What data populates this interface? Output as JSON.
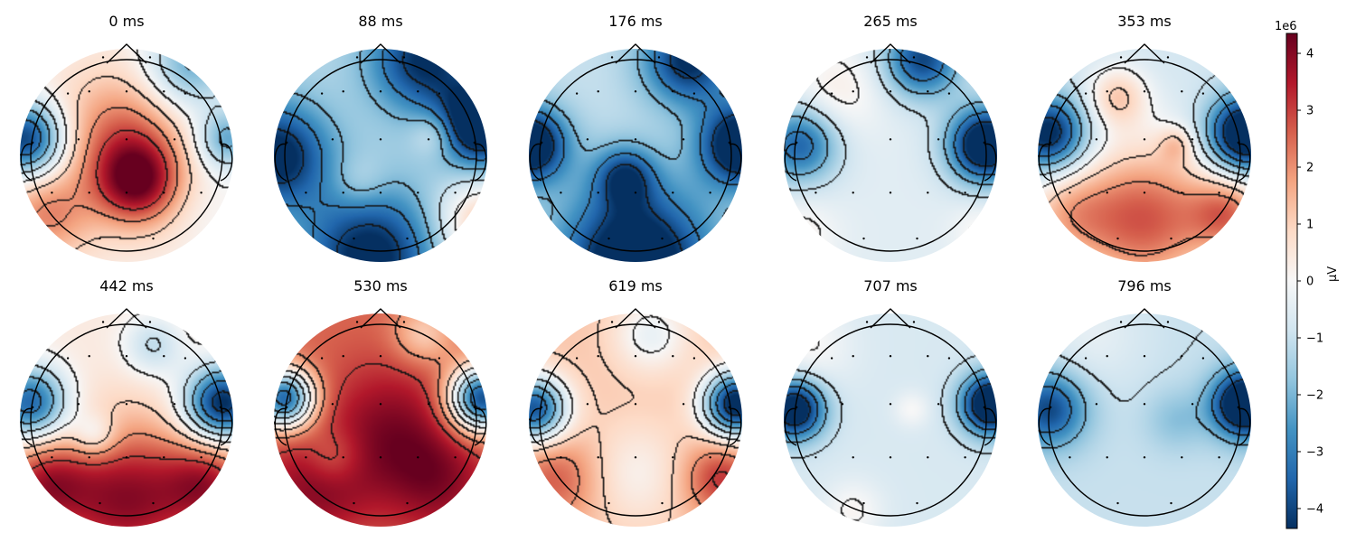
{
  "chart_data": {
    "type": "heatmap",
    "subtype": "eeg-topomap",
    "cmap": "RdBu_r",
    "layout": {
      "rows": 2,
      "cols": 5
    },
    "electrodes": [
      [
        -0.22,
        -0.92
      ],
      [
        0.22,
        -0.92
      ],
      [
        -0.55,
        -0.58
      ],
      [
        -0.35,
        -0.6
      ],
      [
        0.0,
        -0.6
      ],
      [
        0.35,
        -0.6
      ],
      [
        0.55,
        -0.58
      ],
      [
        -0.88,
        -0.12
      ],
      [
        -0.45,
        -0.15
      ],
      [
        0.0,
        -0.15
      ],
      [
        0.45,
        -0.15
      ],
      [
        0.88,
        -0.12
      ],
      [
        -0.7,
        0.35
      ],
      [
        -0.35,
        0.35
      ],
      [
        0.0,
        0.35
      ],
      [
        0.35,
        0.35
      ],
      [
        0.7,
        0.35
      ],
      [
        -0.25,
        0.78
      ],
      [
        0.25,
        0.78
      ]
    ],
    "maps": [
      {
        "label": "0 ms",
        "base": 0.3,
        "blobs": [
          [
            -0.95,
            -0.15,
            0.25,
            -4.5
          ],
          [
            0.95,
            -0.15,
            0.2,
            -2.5
          ],
          [
            0.1,
            0.25,
            0.28,
            3.6
          ],
          [
            -0.05,
            -0.2,
            0.4,
            2.0
          ],
          [
            -0.75,
            0.55,
            0.3,
            1.8
          ],
          [
            0.75,
            0.5,
            0.3,
            -0.3
          ],
          [
            0.6,
            -0.85,
            0.3,
            -2.5
          ]
        ]
      },
      {
        "label": "88 ms",
        "base": -1.2,
        "blobs": [
          [
            -0.98,
            0.0,
            0.35,
            -3.5
          ],
          [
            0.95,
            -0.3,
            0.28,
            -4.5
          ],
          [
            0.4,
            -0.9,
            0.35,
            -3.2
          ],
          [
            -0.1,
            0.95,
            0.45,
            -3.5
          ],
          [
            0.95,
            0.65,
            0.3,
            2.5
          ],
          [
            0.5,
            -0.2,
            0.15,
            1.2
          ],
          [
            -0.2,
            0.25,
            0.18,
            0.8
          ]
        ]
      },
      {
        "label": "176 ms",
        "base": -1.0,
        "blobs": [
          [
            -1.0,
            -0.1,
            0.25,
            -4.5
          ],
          [
            1.0,
            -0.1,
            0.28,
            -4.5
          ],
          [
            0.0,
            1.0,
            0.5,
            -4.5
          ],
          [
            0.5,
            -0.9,
            0.3,
            -3.5
          ],
          [
            -0.1,
            0.2,
            0.2,
            -2.5
          ]
        ]
      },
      {
        "label": "265 ms",
        "base": -0.5,
        "blobs": [
          [
            -0.85,
            -0.1,
            0.25,
            -3.0
          ],
          [
            0.9,
            -0.1,
            0.25,
            -5.0
          ],
          [
            0.3,
            -0.9,
            0.25,
            -3.5
          ],
          [
            -0.5,
            -0.6,
            0.3,
            0.8
          ],
          [
            -0.85,
            0.75,
            0.25,
            0.7
          ],
          [
            0.85,
            0.7,
            0.2,
            0.6
          ]
        ]
      },
      {
        "label": "353 ms",
        "base": -0.8,
        "blobs": [
          [
            -0.9,
            -0.2,
            0.25,
            -4.0
          ],
          [
            0.95,
            -0.2,
            0.25,
            -5.0
          ],
          [
            0.0,
            0.6,
            0.5,
            3.5
          ],
          [
            -0.75,
            0.55,
            0.3,
            1.5
          ],
          [
            0.8,
            0.55,
            0.25,
            2.5
          ],
          [
            -0.25,
            -0.55,
            0.2,
            1.8
          ],
          [
            0.3,
            -0.1,
            0.12,
            1.2
          ]
        ]
      },
      {
        "label": "442 ms",
        "base": 0.4,
        "blobs": [
          [
            -0.9,
            -0.15,
            0.25,
            -4.0
          ],
          [
            0.9,
            -0.15,
            0.25,
            -5.0
          ],
          [
            0.0,
            0.75,
            0.5,
            3.5
          ],
          [
            -0.8,
            0.6,
            0.3,
            2.5
          ],
          [
            0.8,
            0.6,
            0.3,
            2.5
          ],
          [
            -0.3,
            0.15,
            0.15,
            -1.5
          ],
          [
            0.25,
            -0.7,
            0.2,
            -1.5
          ]
        ]
      },
      {
        "label": "530 ms",
        "base": 2.5,
        "blobs": [
          [
            -0.9,
            -0.2,
            0.2,
            -6.0
          ],
          [
            0.95,
            -0.2,
            0.22,
            -6.5
          ],
          [
            0.1,
            0.1,
            0.45,
            1.5
          ],
          [
            -0.6,
            0.6,
            0.35,
            1.5
          ],
          [
            0.55,
            0.6,
            0.35,
            1.2
          ],
          [
            -0.45,
            0.35,
            0.2,
            -1.2
          ],
          [
            0.4,
            -0.8,
            0.2,
            -1.5
          ]
        ]
      },
      {
        "label": "619 ms",
        "base": 1.2,
        "blobs": [
          [
            -0.95,
            -0.1,
            0.22,
            -5.0
          ],
          [
            0.95,
            -0.15,
            0.22,
            -6.0
          ],
          [
            0.15,
            -0.8,
            0.25,
            -1.5
          ],
          [
            0.0,
            0.5,
            0.35,
            -1.0
          ],
          [
            0.8,
            0.55,
            0.25,
            2.0
          ],
          [
            -0.75,
            0.55,
            0.3,
            1.5
          ]
        ]
      },
      {
        "label": "707 ms",
        "base": -0.7,
        "blobs": [
          [
            -0.9,
            -0.1,
            0.2,
            -4.5
          ],
          [
            0.95,
            -0.15,
            0.2,
            -5.0
          ],
          [
            -0.8,
            -0.7,
            0.3,
            0.8
          ],
          [
            -0.35,
            0.85,
            0.2,
            0.8
          ],
          [
            0.2,
            -0.1,
            0.12,
            0.7
          ]
        ]
      },
      {
        "label": "796 ms",
        "base": -1.0,
        "blobs": [
          [
            -0.9,
            -0.1,
            0.25,
            -3.0
          ],
          [
            0.95,
            -0.15,
            0.22,
            -5.0
          ],
          [
            -0.5,
            -0.8,
            0.35,
            0.6
          ],
          [
            0.3,
            0.0,
            0.2,
            -0.8
          ]
        ]
      }
    ],
    "colorbar": {
      "label": "µV",
      "multiplier": "1e6",
      "ticks": [
        4,
        3,
        2,
        1,
        0,
        -1,
        -2,
        -3,
        -4
      ],
      "tick_labels": [
        "4",
        "3",
        "2",
        "1",
        "0",
        "−1",
        "−2",
        "−3",
        "−4"
      ],
      "vmin": -4.35,
      "vmax": 4.35
    }
  }
}
